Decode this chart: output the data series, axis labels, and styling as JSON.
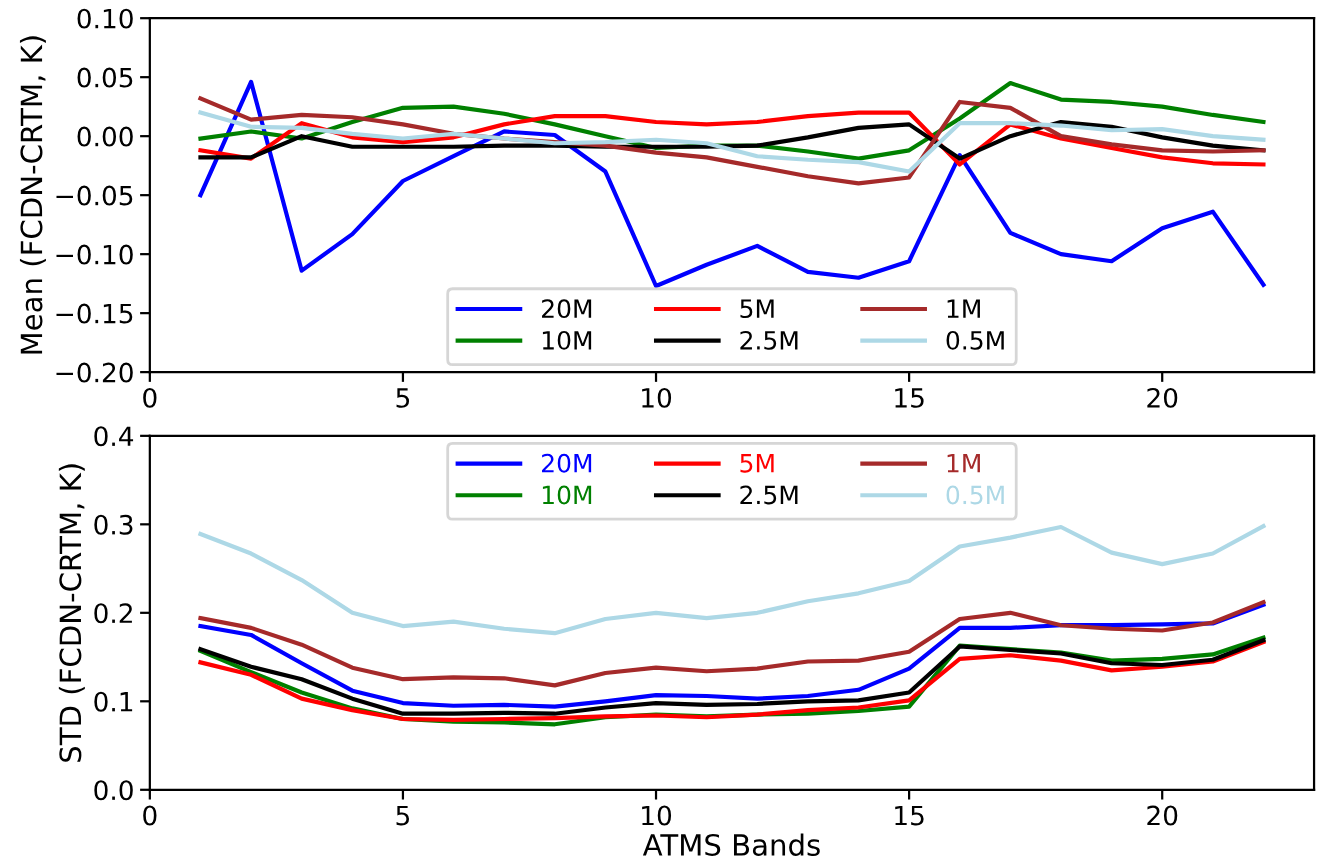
{
  "chart_data": [
    {
      "type": "line",
      "ylabel": "Mean (FCDN-CRTM, K)",
      "x": [
        1,
        2,
        3,
        4,
        5,
        6,
        7,
        8,
        9,
        10,
        11,
        12,
        13,
        14,
        15,
        16,
        17,
        18,
        19,
        20,
        21,
        22
      ],
      "xlim": [
        0,
        23
      ],
      "xticks": [
        0,
        5,
        10,
        15,
        20
      ],
      "ylim": [
        -0.2,
        0.1
      ],
      "yticks": [
        {
          "value": -0.2,
          "label": "−0.20"
        },
        {
          "value": -0.15,
          "label": "−0.15"
        },
        {
          "value": -0.1,
          "label": "−0.10"
        },
        {
          "value": -0.05,
          "label": "−0.05"
        },
        {
          "value": 0,
          "label": "0.00"
        },
        {
          "value": 0.05,
          "label": "0.05"
        },
        {
          "value": 0.1,
          "label": "0.10"
        }
      ],
      "legend": "bottom",
      "grid": false,
      "series": [
        {
          "name": "20M",
          "color": "#0000ff",
          "values": [
            -0.05,
            0.046,
            -0.114,
            -0.083,
            -0.038,
            -0.017,
            0.004,
            0.001,
            -0.03,
            -0.127,
            -0.109,
            -0.093,
            -0.115,
            -0.12,
            -0.106,
            -0.016,
            -0.082,
            -0.1,
            -0.106,
            -0.078,
            -0.064,
            -0.126
          ]
        },
        {
          "name": "10M",
          "color": "#008000",
          "values": [
            -0.002,
            0.004,
            -0.002,
            0.012,
            0.024,
            0.025,
            0.019,
            0.01,
            0.0,
            -0.01,
            -0.008,
            -0.008,
            -0.013,
            -0.019,
            -0.012,
            0.015,
            0.045,
            0.031,
            0.029,
            0.025,
            0.018,
            0.012
          ]
        },
        {
          "name": "5M",
          "color": "#ff0000",
          "values": [
            -0.012,
            -0.019,
            0.011,
            -0.001,
            -0.005,
            -0.001,
            0.01,
            0.017,
            0.017,
            0.012,
            0.01,
            0.012,
            0.017,
            0.02,
            0.02,
            -0.024,
            0.01,
            -0.002,
            -0.01,
            -0.018,
            -0.023,
            -0.024
          ]
        },
        {
          "name": "2.5M",
          "color": "#000000",
          "values": [
            -0.018,
            -0.018,
            0.0,
            -0.009,
            -0.009,
            -0.009,
            -0.008,
            -0.008,
            -0.009,
            -0.009,
            -0.009,
            -0.008,
            -0.001,
            0.007,
            0.01,
            -0.019,
            0.0,
            0.012,
            0.008,
            -0.001,
            -0.008,
            -0.012
          ]
        },
        {
          "name": "1M",
          "color": "#a52a2a",
          "values": [
            0.032,
            0.014,
            0.018,
            0.016,
            0.01,
            0.002,
            -0.002,
            -0.005,
            -0.008,
            -0.014,
            -0.018,
            -0.026,
            -0.034,
            -0.04,
            -0.035,
            0.029,
            0.024,
            0.0,
            -0.007,
            -0.012,
            -0.013,
            -0.012
          ]
        },
        {
          "name": "0.5M",
          "color": "#add8e6",
          "values": [
            0.02,
            0.008,
            0.007,
            0.002,
            -0.002,
            0.002,
            -0.002,
            -0.006,
            -0.005,
            -0.003,
            -0.006,
            -0.017,
            -0.02,
            -0.022,
            -0.03,
            0.011,
            0.011,
            0.009,
            0.005,
            0.006,
            0.0,
            -0.003
          ]
        }
      ]
    },
    {
      "type": "line",
      "ylabel": "STD (FCDN-CRTM, K)",
      "xlabel": "ATMS Bands",
      "x": [
        1,
        2,
        3,
        4,
        5,
        6,
        7,
        8,
        9,
        10,
        11,
        12,
        13,
        14,
        15,
        16,
        17,
        18,
        19,
        20,
        21,
        22
      ],
      "xlim": [
        0,
        23
      ],
      "xticks": [
        0,
        5,
        10,
        15,
        20
      ],
      "ylim": [
        0,
        0.4
      ],
      "yticks": [
        {
          "value": 0,
          "label": "0.0"
        },
        {
          "value": 0.1,
          "label": "0.1"
        },
        {
          "value": 0.2,
          "label": "0.2"
        },
        {
          "value": 0.3,
          "label": "0.3"
        },
        {
          "value": 0.4,
          "label": "0.4"
        }
      ],
      "legend": "top",
      "grid": false,
      "series": [
        {
          "name": "20M",
          "color": "#0000ff",
          "values": [
            0.185,
            0.175,
            0.143,
            0.112,
            0.098,
            0.095,
            0.096,
            0.094,
            0.1,
            0.107,
            0.106,
            0.103,
            0.106,
            0.113,
            0.137,
            0.183,
            0.183,
            0.186,
            0.186,
            0.187,
            0.188,
            0.209
          ]
        },
        {
          "name": "10M",
          "color": "#008000",
          "values": [
            0.157,
            0.133,
            0.11,
            0.092,
            0.08,
            0.077,
            0.076,
            0.074,
            0.082,
            0.085,
            0.083,
            0.085,
            0.086,
            0.089,
            0.094,
            0.163,
            0.159,
            0.155,
            0.146,
            0.148,
            0.153,
            0.172
          ]
        },
        {
          "name": "5M",
          "color": "#ff0000",
          "values": [
            0.144,
            0.13,
            0.103,
            0.09,
            0.08,
            0.079,
            0.08,
            0.081,
            0.083,
            0.084,
            0.082,
            0.085,
            0.09,
            0.093,
            0.101,
            0.148,
            0.152,
            0.146,
            0.135,
            0.139,
            0.145,
            0.167
          ]
        },
        {
          "name": "2.5M",
          "color": "#000000",
          "values": [
            0.159,
            0.139,
            0.125,
            0.103,
            0.086,
            0.086,
            0.087,
            0.086,
            0.093,
            0.098,
            0.096,
            0.097,
            0.1,
            0.101,
            0.11,
            0.162,
            0.158,
            0.154,
            0.143,
            0.141,
            0.147,
            0.169
          ]
        },
        {
          "name": "1M",
          "color": "#a52a2a",
          "values": [
            0.194,
            0.183,
            0.164,
            0.138,
            0.125,
            0.127,
            0.126,
            0.118,
            0.132,
            0.138,
            0.134,
            0.137,
            0.145,
            0.146,
            0.156,
            0.193,
            0.2,
            0.186,
            0.182,
            0.18,
            0.189,
            0.212
          ]
        },
        {
          "name": "0.5M",
          "color": "#add8e6",
          "values": [
            0.289,
            0.267,
            0.237,
            0.2,
            0.185,
            0.19,
            0.182,
            0.177,
            0.193,
            0.2,
            0.194,
            0.2,
            0.213,
            0.222,
            0.236,
            0.275,
            0.285,
            0.297,
            0.268,
            0.255,
            0.267,
            0.298
          ]
        }
      ]
    }
  ]
}
